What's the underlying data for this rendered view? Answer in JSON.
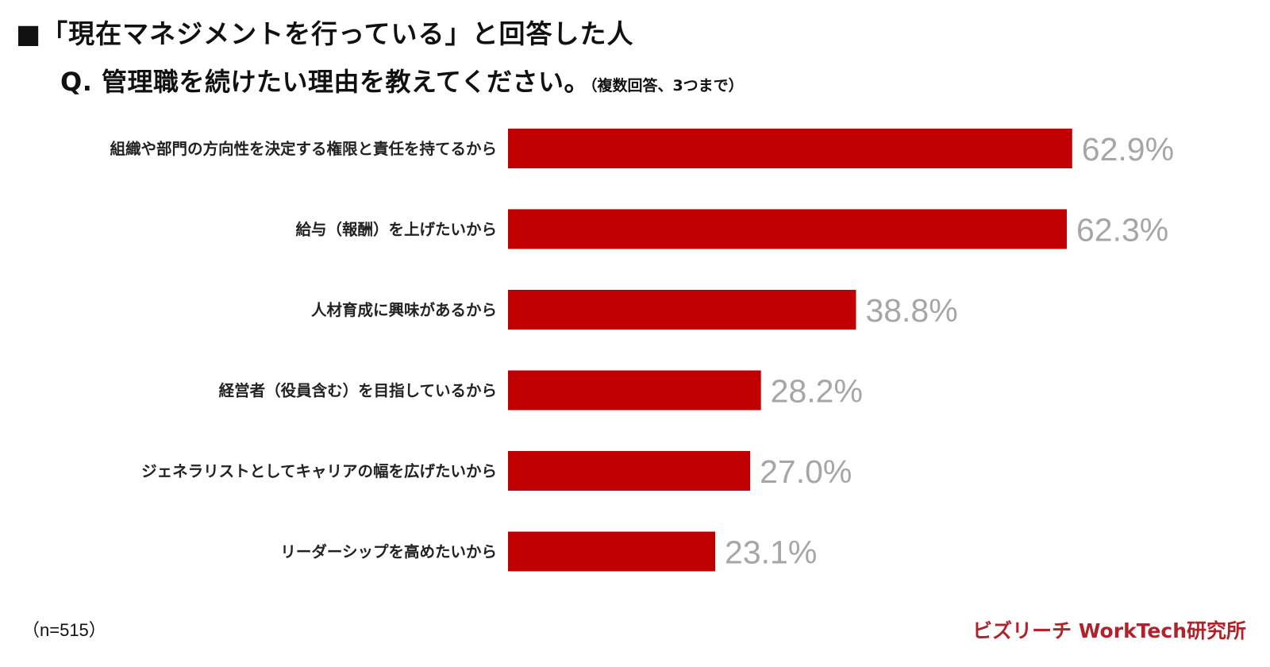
{
  "title": {
    "line1": "■「現在マネジメントを行っている」と回答した人",
    "line2": "Q. 管理職を続けたい理由を教えてください。",
    "note": "（複数回答、3つまで）"
  },
  "colors": {
    "bar": "#c00000",
    "value_label": "#a6a6a6",
    "brand": "#b0232a"
  },
  "chart_data": {
    "type": "bar",
    "orientation": "horizontal",
    "categories": [
      "組織や部門の方向性を決定する権限と責任を持てるから",
      "給与（報酬）を上げたいから",
      "人材育成に興味があるから",
      "経営者（役員含む）を目指しているから",
      "ジェネラリストとしてキャリアの幅を広げたいから",
      "リーダーシップを高めたいから"
    ],
    "values": [
      62.9,
      62.3,
      38.8,
      28.2,
      27.0,
      23.1
    ],
    "value_labels": [
      "62.9%",
      "62.3%",
      "38.8%",
      "28.2%",
      "27.0%",
      "23.1%"
    ],
    "unit": "%",
    "xlim": [
      0,
      100
    ],
    "grid": false,
    "legend": "none"
  },
  "footer": {
    "sample_size": "（n=515）",
    "brand": "ビズリーチ WorkTech研究所"
  }
}
